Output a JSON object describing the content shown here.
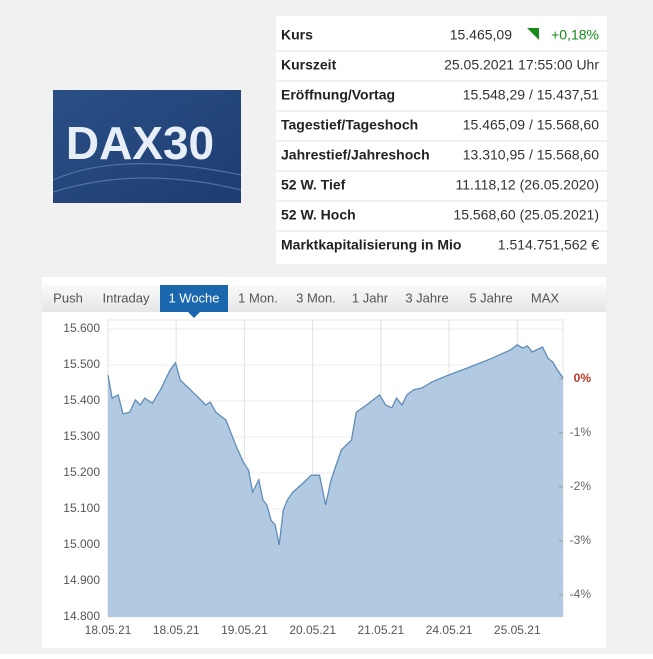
{
  "logo": {
    "text": "DAX30"
  },
  "table": {
    "rows": [
      {
        "label": "Kurs",
        "value": "15.465,09",
        "change": "+0,18%"
      },
      {
        "label": "Kurszeit",
        "value": "25.05.2021 17:55:00 Uhr"
      },
      {
        "label": "Eröffnung/Vortag",
        "value": "15.548,29 / 15.437,51"
      },
      {
        "label": "Tagestief/Tageshoch",
        "value": "15.465,09 / 15.568,60"
      },
      {
        "label": "Jahrestief/Jahreshoch",
        "value": "13.310,95 / 15.568,60"
      },
      {
        "label": "52 W. Tief",
        "value": "11.118,12 (26.05.2020)"
      },
      {
        "label": "52 W. Hoch",
        "value": "15.568,60 (25.05.2021)"
      },
      {
        "label": "Marktkapitalisierung in Mio",
        "value": "1.514.751,562 €"
      }
    ]
  },
  "tabs": {
    "items": [
      "Push",
      "Intraday",
      "1 Woche",
      "1 Mon.",
      "3 Mon.",
      "1 Jahr",
      "3 Jahre",
      "5 Jahre",
      "MAX"
    ],
    "active": 2
  },
  "chart_data": {
    "type": "area",
    "color": "#5f8db9",
    "fill": "#a9c4df",
    "grid": true,
    "x": [
      0,
      0.06,
      0.15,
      0.22,
      0.32,
      0.4,
      0.47,
      0.54,
      0.65,
      0.77,
      0.91,
      0.99,
      1.06,
      1.21,
      1.36,
      1.43,
      1.5,
      1.58,
      1.73,
      1.87,
      1.98,
      2.06,
      2.12,
      2.21,
      2.27,
      2.33,
      2.39,
      2.45,
      2.51,
      2.57,
      2.63,
      2.71,
      2.83,
      2.98,
      3.1,
      3.19,
      3.27,
      3.42,
      3.57,
      3.64,
      3.79,
      3.98,
      4.07,
      4.16,
      4.23,
      4.31,
      4.38,
      4.48,
      4.6,
      4.75,
      4.99,
      5.34,
      5.63,
      5.9,
      6.0,
      6.08,
      6.15,
      6.22,
      6.37,
      6.45,
      6.52,
      6.59,
      6.67
    ],
    "values": [
      15472,
      15408,
      15417,
      15364,
      15369,
      15403,
      15389,
      15408,
      15394,
      15431,
      15486,
      15506,
      15458,
      15431,
      15403,
      15389,
      15397,
      15369,
      15347,
      15278,
      15231,
      15208,
      15147,
      15181,
      15125,
      15111,
      15069,
      15056,
      15000,
      15097,
      15125,
      15147,
      15167,
      15194,
      15194,
      15111,
      15181,
      15264,
      15292,
      15369,
      15389,
      15417,
      15389,
      15381,
      15408,
      15389,
      15417,
      15431,
      15436,
      15453,
      15472,
      15497,
      15519,
      15542,
      15556,
      15547,
      15553,
      15536,
      15550,
      15519,
      15508,
      15486,
      15464
    ],
    "xlim": [
      0,
      6.67
    ],
    "xticks": [
      {
        "value": 0,
        "label": "18.05.21"
      },
      {
        "value": 1,
        "label": "18.05.21"
      },
      {
        "value": 2,
        "label": "19.05.21"
      },
      {
        "value": 3,
        "label": "20.05.21"
      },
      {
        "value": 4,
        "label": "21.05.21"
      },
      {
        "value": 5,
        "label": "24.05.21"
      },
      {
        "value": 6,
        "label": "25.05.21"
      }
    ],
    "ylim": [
      14800,
      15625
    ],
    "yticks": [
      {
        "value": 14800,
        "label": "14.800"
      },
      {
        "value": 14900,
        "label": "14.900"
      },
      {
        "value": 15000,
        "label": "15.000"
      },
      {
        "value": 15100,
        "label": "15.100"
      },
      {
        "value": 15200,
        "label": "15.200"
      },
      {
        "value": 15300,
        "label": "15.300"
      },
      {
        "value": 15400,
        "label": "15.400"
      },
      {
        "value": 15500,
        "label": "15.500"
      },
      {
        "value": 15600,
        "label": "15.600"
      }
    ],
    "y2lim": [
      -4.41,
      1.09
    ],
    "y2ticks": [
      {
        "value": 0,
        "label": "0%"
      },
      {
        "value": -1,
        "label": "-1%"
      },
      {
        "value": -2,
        "label": "-2%"
      },
      {
        "value": -3,
        "label": "-3%"
      },
      {
        "value": -4,
        "label": "-4%"
      }
    ]
  }
}
